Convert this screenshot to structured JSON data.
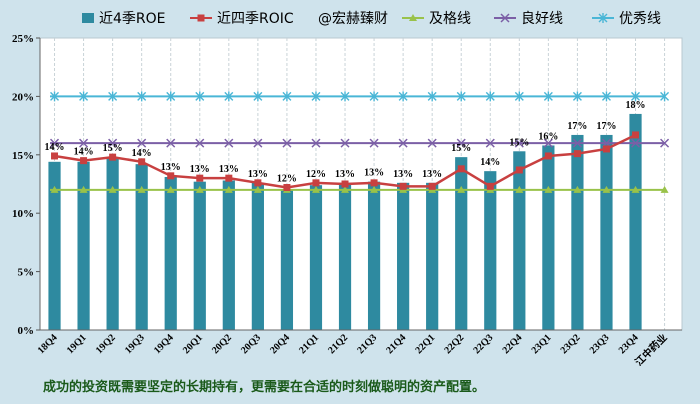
{
  "chart_data": {
    "type": "bar",
    "categories": [
      "18Q4",
      "19Q1",
      "19Q2",
      "19Q3",
      "19Q4",
      "20Q1",
      "20Q2",
      "20Q3",
      "20Q4",
      "21Q1",
      "21Q2",
      "21Q3",
      "21Q4",
      "22Q1",
      "22Q2",
      "22Q3",
      "22Q4",
      "23Q1",
      "23Q2",
      "23Q3",
      "23Q4"
    ],
    "extra_category": "江中药业",
    "series": [
      {
        "name": "近4季ROE",
        "kind": "bar",
        "color": "#2e8aa0",
        "values": [
          14.4,
          14.4,
          14.7,
          14.2,
          13.1,
          12.7,
          12.8,
          12.6,
          12.0,
          12.4,
          12.6,
          12.7,
          12.6,
          12.6,
          14.8,
          13.6,
          15.3,
          15.8,
          16.7,
          16.7,
          18.5
        ]
      },
      {
        "name": "近四季ROIC",
        "kind": "line",
        "color": "#c84040",
        "values": [
          14.9,
          14.5,
          14.8,
          14.4,
          13.2,
          13.0,
          13.0,
          12.6,
          12.2,
          12.6,
          12.5,
          12.6,
          12.3,
          12.3,
          13.8,
          12.3,
          13.7,
          14.9,
          15.1,
          15.5,
          16.7
        ]
      },
      {
        "name": "及格线",
        "kind": "line",
        "color": "#99c24a",
        "constant": 12,
        "marker": "triangle"
      },
      {
        "name": "良好线",
        "kind": "line",
        "color": "#7b5fa6",
        "constant": 16,
        "marker": "x"
      },
      {
        "name": "优秀线",
        "kind": "line",
        "color": "#4ab6d6",
        "constant": 20,
        "marker": "star"
      }
    ],
    "watermark": "@宏赫臻财",
    "data_labels": [
      "14%",
      "14%",
      "15%",
      "14%",
      "13%",
      "13%",
      "13%",
      "13%",
      "12%",
      "12%",
      "13%",
      "13%",
      "13%",
      "13%",
      "15%",
      "14%",
      "15%",
      "16%",
      "17%",
      "17%",
      "18%"
    ],
    "y_ticks": [
      "0%",
      "5%",
      "10%",
      "15%",
      "20%",
      "25%"
    ],
    "ylim": [
      0,
      25
    ],
    "grid": "vertical dashed",
    "legend": "top"
  },
  "footer": "成功的投资既需要坚定的长期持有，更需要在合适的时刻做聪明的资产配置。"
}
